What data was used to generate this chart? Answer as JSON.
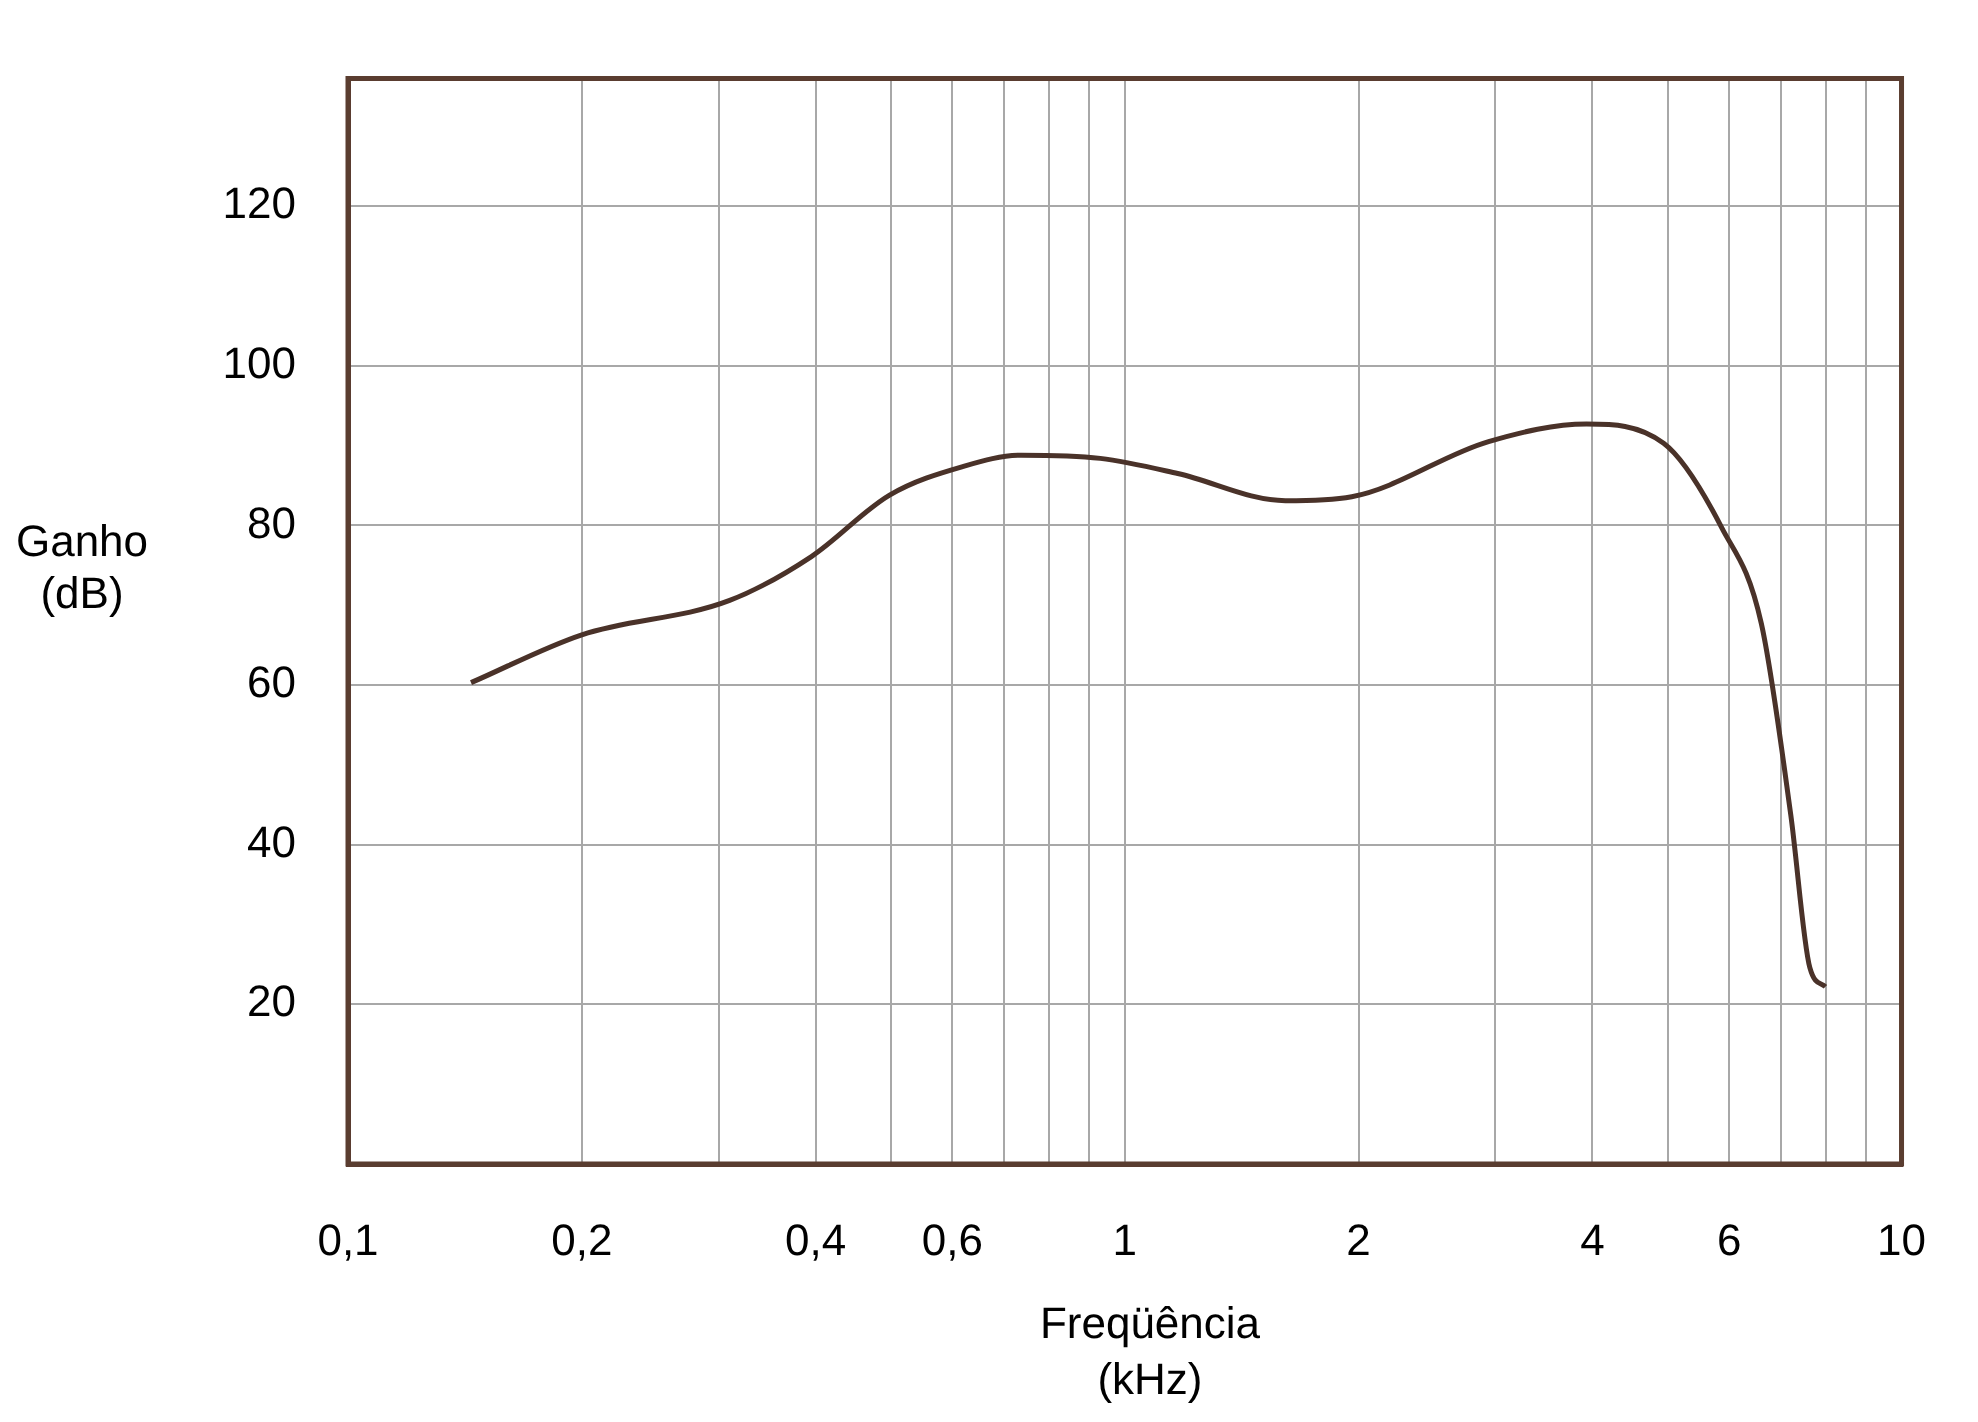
{
  "chart_data": {
    "type": "line",
    "xlabel": "Freqüência (kHz)",
    "ylabel": "Ganho (dB)",
    "series": [
      {
        "color": "#4a3229",
        "x": [
          0.144,
          0.2,
          0.31,
          0.395,
          0.498,
          0.62,
          0.736,
          0.93,
          1.17,
          1.61,
          1.96,
          2.94,
          3.93,
          4.94,
          5.87,
          6.6,
          7.2,
          7.62,
          7.98
        ],
        "values": [
          60.3,
          66.3,
          70.6,
          76.1,
          83.8,
          87.4,
          88.8,
          88.4,
          86.5,
          83.1,
          83.6,
          90.5,
          92.7,
          90.3,
          79.7,
          67.7,
          43.8,
          24.6,
          22.2
        ]
      }
    ],
    "log": "x",
    "xlim": [
      0.1,
      10
    ],
    "ylim": [
      0,
      136
    ],
    "xticks": [
      {
        "value": 0.1,
        "label": "0,1"
      },
      {
        "value": 0.2,
        "label": "0,2"
      },
      {
        "value": 0.3,
        "label": null
      },
      {
        "value": 0.4,
        "label": "0,4"
      },
      {
        "value": 0.5,
        "label": null
      },
      {
        "value": 0.6,
        "label": "0,6"
      },
      {
        "value": 0.7,
        "label": null
      },
      {
        "value": 0.8,
        "label": null
      },
      {
        "value": 0.9,
        "label": null
      },
      1,
      2,
      {
        "value": 3,
        "label": null
      },
      4,
      {
        "value": 5,
        "label": null
      },
      6,
      {
        "value": 7,
        "label": null
      },
      {
        "value": 8,
        "label": null
      },
      {
        "value": 9,
        "label": null
      },
      10
    ],
    "yticks": [
      20,
      40,
      60,
      80,
      100,
      120
    ],
    "grid": true,
    "legend": false,
    "marker": "none",
    "line_style": "solid"
  }
}
